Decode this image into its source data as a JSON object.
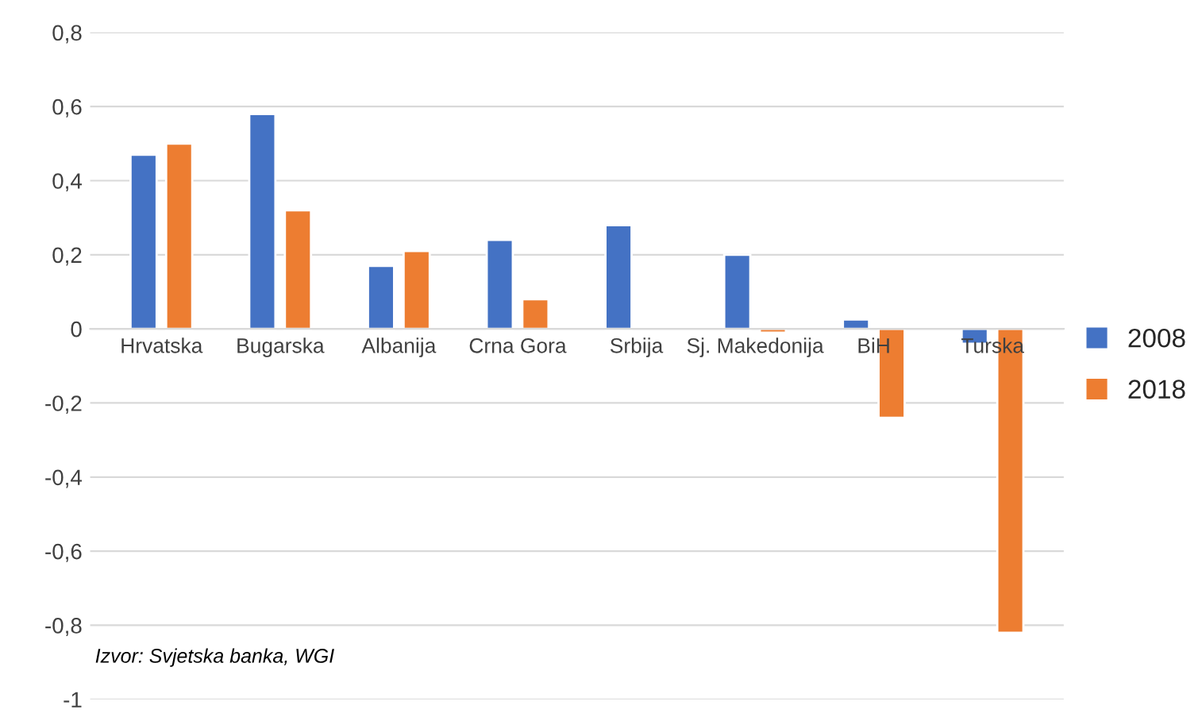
{
  "chart_data": {
    "type": "bar",
    "categories": [
      "Hrvatska",
      "Bugarska",
      "Albanija",
      "Crna Gora",
      "Srbija",
      "Sj. Makedonija",
      "BiH",
      "Turska"
    ],
    "series": [
      {
        "name": "2008",
        "color": "#4472c4",
        "values": [
          0.47,
          0.58,
          0.17,
          0.24,
          0.28,
          0.2,
          0.025,
          -0.04
        ]
      },
      {
        "name": "2018",
        "color": "#ed7d31",
        "values": [
          0.5,
          0.32,
          0.21,
          0.08,
          null,
          -0.01,
          -0.24,
          -0.82
        ]
      }
    ],
    "ylim": [
      -1,
      0.8
    ],
    "yticks": [
      {
        "value": -1,
        "label": "-1"
      },
      {
        "value": -0.8,
        "label": "-0,8"
      },
      {
        "value": -0.6,
        "label": "-0,6"
      },
      {
        "value": -0.4,
        "label": "-0,4"
      },
      {
        "value": -0.2,
        "label": "-0,2"
      },
      0,
      {
        "value": 0.2,
        "label": "0,2"
      },
      {
        "value": 0.4,
        "label": "0,4"
      },
      {
        "value": 0.6,
        "label": "0,6"
      },
      {
        "value": 0.8,
        "label": "0,8"
      }
    ],
    "grid": "y",
    "legend": "right",
    "annotations": [
      "Izvor: Svjetska banka, WGI"
    ]
  }
}
